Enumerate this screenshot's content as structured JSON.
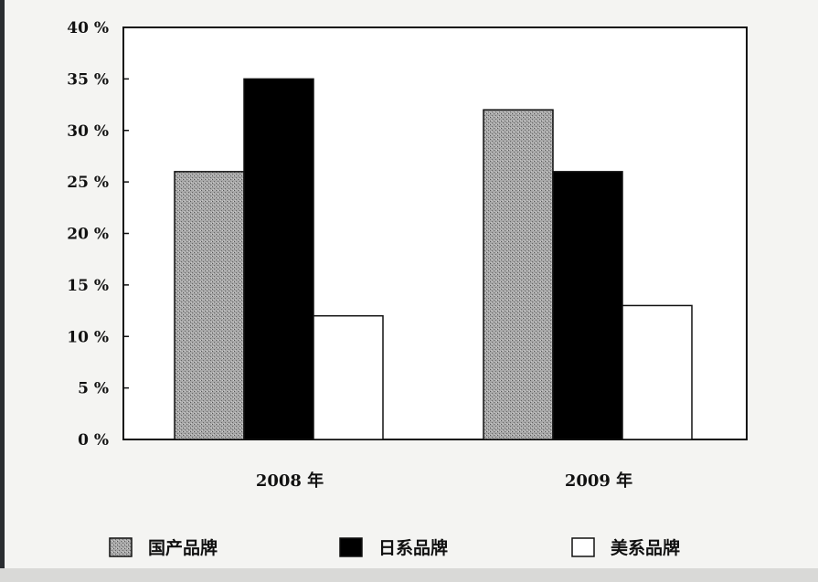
{
  "chart_data": {
    "type": "bar",
    "categories": [
      "2008 年",
      "2009 年"
    ],
    "series": [
      {
        "name": "国产品牌",
        "values": [
          26,
          32
        ],
        "color": "#9a9a9a",
        "pattern": "stipple-gray"
      },
      {
        "name": "日系品牌",
        "values": [
          35,
          26
        ],
        "color": "#000000",
        "pattern": "solid-black"
      },
      {
        "name": "美系品牌",
        "values": [
          12,
          13
        ],
        "color": "#ffffff",
        "pattern": "white"
      }
    ],
    "y_ticks": [
      "0 %",
      "5 %",
      "10 %",
      "15 %",
      "20 %",
      "25 %",
      "30 %",
      "35 %",
      "40 %"
    ],
    "ylim": [
      0,
      40
    ],
    "y_unit": "%",
    "grid": false,
    "legend_position": "bottom"
  }
}
